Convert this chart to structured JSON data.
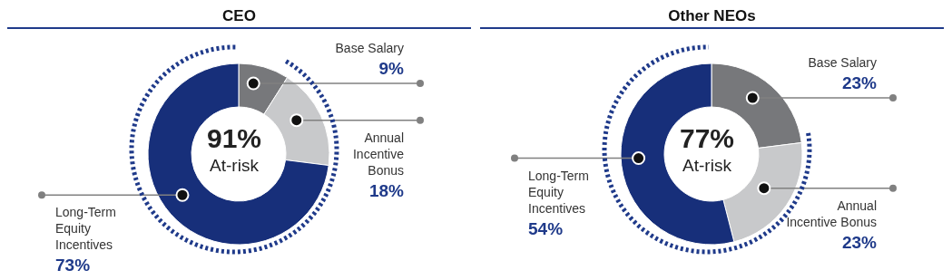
{
  "chart_data": [
    {
      "type": "donut",
      "title": "CEO",
      "categories": [
        "Base Salary",
        "Annual\nIncentive\nBonus",
        "Long-Term\nEquity\nIncentives"
      ],
      "values": [
        9,
        18,
        73
      ],
      "value_labels": [
        "9%",
        "18%",
        "73%"
      ],
      "colors": [
        "#77787b",
        "#c8c9cb",
        "#172f7a"
      ],
      "legend": false,
      "annotations": [
        "91%",
        "At-risk"
      ]
    },
    {
      "type": "donut",
      "title": "Other NEOs",
      "categories": [
        "Base Salary",
        "Annual\nIncentive Bonus",
        "Long-Term\nEquity\nIncentives"
      ],
      "values": [
        23,
        23,
        54
      ],
      "value_labels": [
        "23%",
        "23%",
        "54%"
      ],
      "colors": [
        "#77787b",
        "#c8c9cb",
        "#172f7a"
      ],
      "legend": false,
      "annotations": [
        "77%",
        "At-risk"
      ]
    }
  ]
}
